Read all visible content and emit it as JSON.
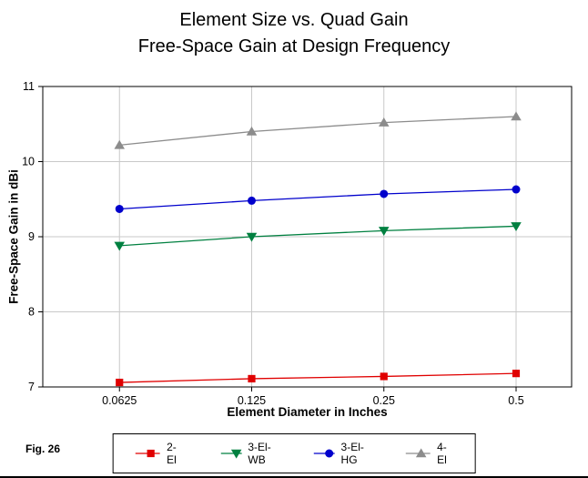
{
  "title": {
    "line1": "Element Size vs. Quad Gain",
    "line2": "Free-Space Gain at Design Frequency"
  },
  "fig_label": "Fig. 26",
  "chart_data": {
    "type": "line",
    "title": "Element Size vs. Quad Gain — Free-Space Gain at Design Frequency",
    "xlabel": "Element Diameter in Inches",
    "ylabel": "Free-Space Gain in dBi",
    "categories": [
      "0.0625",
      "0.125",
      "0.25",
      "0.5"
    ],
    "y_ticks": [
      7,
      8,
      9,
      10,
      11
    ],
    "ylim": [
      7,
      11
    ],
    "grid": true,
    "legend_position": "bottom",
    "series": [
      {
        "name": "2-El",
        "marker": "square",
        "color": "#e00000",
        "values": [
          7.06,
          7.11,
          7.14,
          7.18
        ]
      },
      {
        "name": "3-El-WB",
        "marker": "triangle-down",
        "color": "#008040",
        "values": [
          8.88,
          9.0,
          9.08,
          9.14
        ]
      },
      {
        "name": "3-El-HG",
        "marker": "circle",
        "color": "#0000cc",
        "values": [
          9.37,
          9.48,
          9.57,
          9.63
        ]
      },
      {
        "name": "4-El",
        "marker": "triangle-up",
        "color": "#8c8c8c",
        "values": [
          10.22,
          10.4,
          10.52,
          10.6
        ]
      }
    ]
  }
}
